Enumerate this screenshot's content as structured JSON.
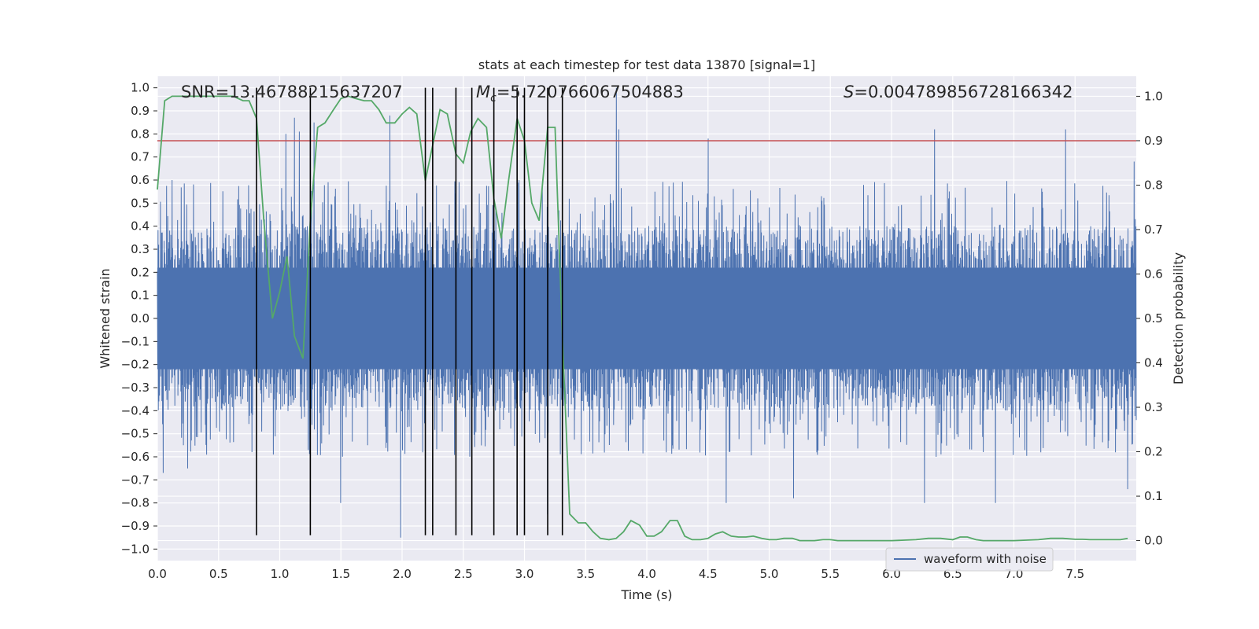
{
  "chart_data": {
    "type": "line",
    "title": "stats at each timestep for test data 13870 [signal=1]",
    "xlabel": "Time (s)",
    "ylabel": "Whitened strain",
    "y2label": "Detection probability",
    "xlim": [
      0,
      8
    ],
    "ylim": [
      -1.05,
      1.05
    ],
    "y2lim": [
      -0.045,
      1.045
    ],
    "x_ticks": [
      0.0,
      0.5,
      1.0,
      1.5,
      2.0,
      2.5,
      3.0,
      3.5,
      4.0,
      4.5,
      5.0,
      5.5,
      6.0,
      6.5,
      7.0,
      7.5
    ],
    "x_tick_labels": [
      "0.0",
      "0.5",
      "1.0",
      "1.5",
      "2.0",
      "2.5",
      "3.0",
      "3.5",
      "4.0",
      "4.5",
      "5.0",
      "5.5",
      "6.0",
      "6.5",
      "7.0",
      "7.5"
    ],
    "y_ticks": [
      1.0,
      0.9,
      0.8,
      0.7,
      0.6,
      0.5,
      0.4,
      0.3,
      0.2,
      0.1,
      0.0,
      -0.1,
      -0.2,
      -0.3,
      -0.4,
      -0.5,
      -0.6,
      -0.7,
      -0.8,
      -0.9,
      -1.0
    ],
    "y_tick_labels": [
      "1.0",
      "0.9",
      "0.8",
      "0.7",
      "0.6",
      "0.5",
      "0.4",
      "0.3",
      "0.2",
      "0.1",
      "0.0",
      "−0.1",
      "−0.2",
      "−0.3",
      "−0.4",
      "−0.5",
      "−0.6",
      "−0.7",
      "−0.8",
      "−0.9",
      "−1.0"
    ],
    "y2_ticks": [
      1.0,
      0.9,
      0.8,
      0.7,
      0.6,
      0.5,
      0.4,
      0.3,
      0.2,
      0.1,
      0.0
    ],
    "y2_tick_labels": [
      "1.0",
      "0.9",
      "0.8",
      "0.7",
      "0.6",
      "0.5",
      "0.4",
      "0.3",
      "0.2",
      "0.1",
      "0.0"
    ],
    "grid": true,
    "legend": {
      "position": "bottom-right",
      "entries": [
        {
          "label": "waveform with noise",
          "color": "#4c72b0"
        }
      ]
    },
    "annotations": {
      "snr": "SNR=13.46788215637207",
      "mc_symbol": "M",
      "mc_subscript": "c",
      "mc_value": "=5.720766067504883",
      "s_symbol": "S",
      "s_value": "=0.004789856728166342"
    },
    "threshold": {
      "y2": 0.9,
      "color": "#c44e52"
    },
    "event_lines_x": [
      0.81,
      1.25,
      2.19,
      2.25,
      2.44,
      2.57,
      2.75,
      2.94,
      3.0,
      3.19,
      3.31
    ],
    "waveform_envelope": {
      "color": "#4c72b0",
      "core_amplitude": 0.4,
      "peak_amplitude": 0.6,
      "peaks": [
        {
          "x": 0.12,
          "y": 0.6
        },
        {
          "x": 0.05,
          "y": -0.67
        },
        {
          "x": 0.25,
          "y": -0.65
        },
        {
          "x": 1.05,
          "y": 0.8
        },
        {
          "x": 1.12,
          "y": 0.87
        },
        {
          "x": 1.16,
          "y": 0.81
        },
        {
          "x": 1.28,
          "y": 0.85
        },
        {
          "x": 1.5,
          "y": -0.8
        },
        {
          "x": 1.9,
          "y": 0.88
        },
        {
          "x": 1.99,
          "y": -0.95
        },
        {
          "x": 3.19,
          "y": -0.85
        },
        {
          "x": 3.75,
          "y": 1.0
        },
        {
          "x": 3.77,
          "y": 0.82
        },
        {
          "x": 4.5,
          "y": 0.78
        },
        {
          "x": 4.65,
          "y": -0.8
        },
        {
          "x": 5.2,
          "y": -0.78
        },
        {
          "x": 6.35,
          "y": 0.82
        },
        {
          "x": 6.27,
          "y": -0.8
        },
        {
          "x": 6.85,
          "y": -0.8
        },
        {
          "x": 7.42,
          "y": 0.82
        },
        {
          "x": 7.93,
          "y": -0.74
        },
        {
          "x": 7.98,
          "y": 0.68
        }
      ]
    },
    "series": [
      {
        "name": "waveform with noise",
        "color": "#4c72b0",
        "axis": "left",
        "style": "dense noise trace"
      },
      {
        "color": "#55a868",
        "axis": "right",
        "x": [
          0.0,
          0.06,
          0.12,
          0.25,
          0.4,
          0.55,
          0.62,
          0.7,
          0.75,
          0.81,
          0.87,
          0.94,
          1.0,
          1.06,
          1.12,
          1.19,
          1.25,
          1.31,
          1.37,
          1.44,
          1.5,
          1.56,
          1.62,
          1.69,
          1.75,
          1.81,
          1.87,
          1.94,
          2.0,
          2.06,
          2.12,
          2.19,
          2.25,
          2.31,
          2.37,
          2.44,
          2.5,
          2.56,
          2.62,
          2.69,
          2.75,
          2.81,
          2.87,
          2.94,
          3.0,
          3.06,
          3.12,
          3.19,
          3.25,
          3.31,
          3.37,
          3.44,
          3.5,
          3.56,
          3.62,
          3.69,
          3.75,
          3.81,
          3.87,
          3.94,
          4.0,
          4.06,
          4.12,
          4.19,
          4.25,
          4.31,
          4.37,
          4.44,
          4.5,
          4.56,
          4.62,
          4.69,
          4.75,
          4.81,
          4.87,
          4.94,
          5.0,
          5.06,
          5.12,
          5.19,
          5.25,
          5.31,
          5.37,
          5.44,
          5.5,
          5.56,
          5.62,
          5.69,
          5.75,
          5.81,
          6.0,
          6.2,
          6.3,
          6.4,
          6.5,
          6.56,
          6.62,
          6.69,
          6.75,
          6.81,
          7.0,
          7.2,
          7.3,
          7.4,
          7.5,
          7.56,
          7.62,
          7.69,
          7.75,
          7.81,
          7.87,
          7.93
        ],
        "values": [
          0.79,
          0.99,
          1.0,
          1.0,
          1.0,
          1.0,
          1.0,
          0.99,
          0.99,
          0.95,
          0.72,
          0.5,
          0.56,
          0.64,
          0.46,
          0.41,
          0.72,
          0.93,
          0.94,
          0.97,
          0.995,
          1.0,
          0.995,
          0.99,
          0.99,
          0.97,
          0.94,
          0.94,
          0.96,
          0.975,
          0.96,
          0.81,
          0.89,
          0.97,
          0.96,
          0.87,
          0.85,
          0.92,
          0.95,
          0.93,
          0.77,
          0.68,
          0.81,
          0.95,
          0.9,
          0.76,
          0.72,
          0.93,
          0.93,
          0.46,
          0.06,
          0.04,
          0.04,
          0.02,
          0.005,
          0.002,
          0.005,
          0.02,
          0.045,
          0.035,
          0.01,
          0.01,
          0.02,
          0.045,
          0.045,
          0.01,
          0.002,
          0.002,
          0.005,
          0.015,
          0.02,
          0.01,
          0.008,
          0.008,
          0.01,
          0.005,
          0.002,
          0.002,
          0.005,
          0.005,
          0.0,
          0.0,
          0.0,
          0.002,
          0.002,
          0.0,
          0.0,
          0.0,
          0.0,
          0.0,
          0.0,
          0.002,
          0.005,
          0.005,
          0.002,
          0.008,
          0.008,
          0.002,
          0.0,
          0.0,
          0.0,
          0.002,
          0.005,
          0.005,
          0.003,
          0.003,
          0.002,
          0.002,
          0.002,
          0.002,
          0.002,
          0.005
        ]
      }
    ]
  }
}
